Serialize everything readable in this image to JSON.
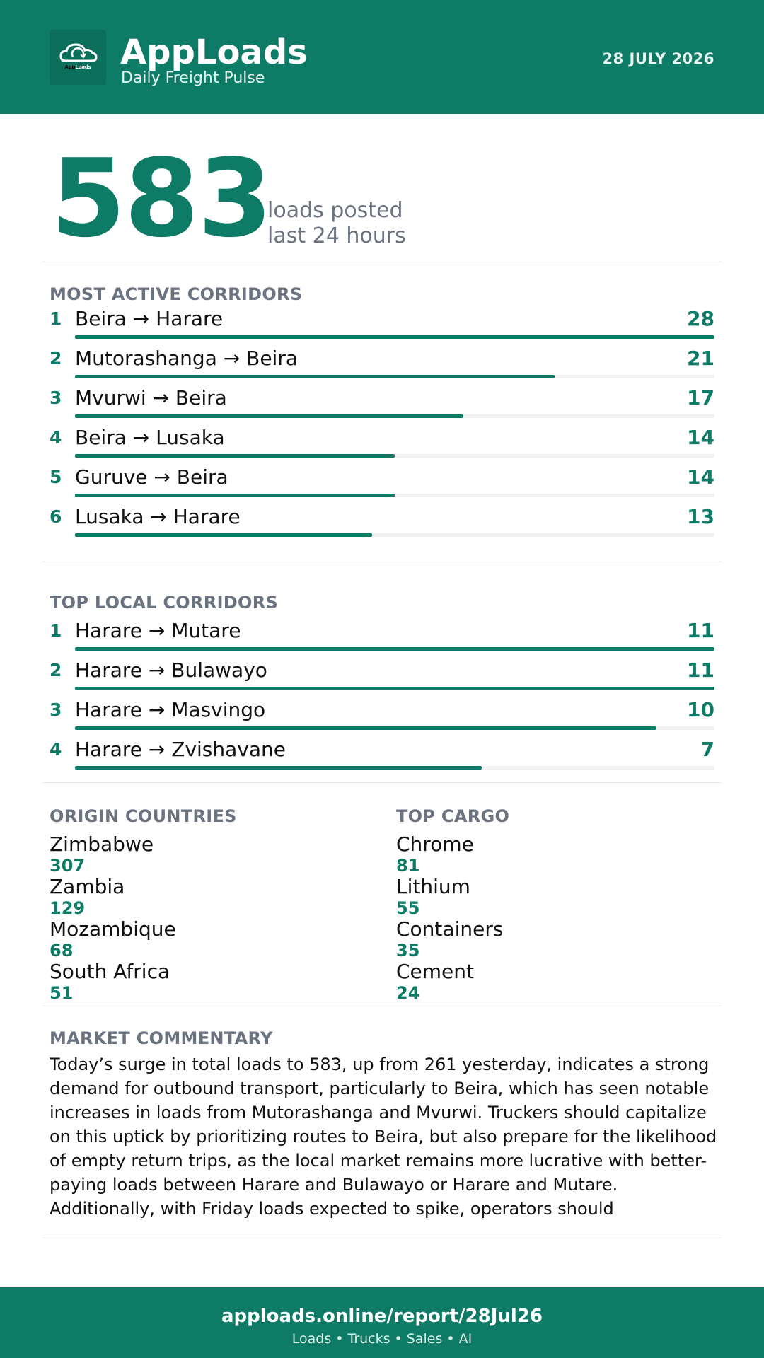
{
  "header": {
    "brand": "AppLoads",
    "tagline": "Daily Freight Pulse",
    "date": "28 JULY 2026",
    "logo": {
      "text_app": "App",
      "text_loads": "Loads",
      "icon": "cloud-refresh-icon"
    },
    "colors": {
      "brand": "#0d7b66"
    }
  },
  "hero": {
    "value": "583",
    "label_line1": "loads posted",
    "label_line2": "last 24 hours"
  },
  "most_active": {
    "title": "MOST ACTIVE CORRIDORS",
    "max": 28,
    "items": [
      {
        "rank": "1",
        "route": "Beira → Harare",
        "count": 28
      },
      {
        "rank": "2",
        "route": "Mutorashanga → Beira",
        "count": 21
      },
      {
        "rank": "3",
        "route": "Mvurwi → Beira",
        "count": 17
      },
      {
        "rank": "4",
        "route": "Beira → Lusaka",
        "count": 14
      },
      {
        "rank": "5",
        "route": "Guruve → Beira",
        "count": 14
      },
      {
        "rank": "6",
        "route": "Lusaka → Harare",
        "count": 13
      }
    ]
  },
  "top_local": {
    "title": "TOP LOCAL CORRIDORS",
    "max": 11,
    "items": [
      {
        "rank": "1",
        "route": "Harare → Mutare",
        "count": 11
      },
      {
        "rank": "2",
        "route": "Harare → Bulawayo",
        "count": 11
      },
      {
        "rank": "3",
        "route": "Harare → Masvingo",
        "count": 10
      },
      {
        "rank": "4",
        "route": "Harare → Zvishavane",
        "count": 7
      }
    ]
  },
  "origin_countries": {
    "title": "ORIGIN COUNTRIES",
    "items": [
      {
        "name": "Zimbabwe",
        "value": "307"
      },
      {
        "name": "Zambia",
        "value": "129"
      },
      {
        "name": "Mozambique",
        "value": "68"
      },
      {
        "name": "South Africa",
        "value": "51"
      }
    ]
  },
  "top_cargo": {
    "title": "TOP CARGO",
    "items": [
      {
        "name": "Chrome",
        "value": "81"
      },
      {
        "name": "Lithium",
        "value": "55"
      },
      {
        "name": "Containers",
        "value": "35"
      },
      {
        "name": "Cement",
        "value": "24"
      }
    ]
  },
  "commentary": {
    "title": "MARKET COMMENTARY",
    "text": "Today’s surge in total loads to 583, up from 261 yesterday, indicates a strong demand for outbound transport, particularly to Beira, which has seen notable increases in loads from Mutorashanga and Mvurwi. Truckers should capitalize on this uptick by prioritizing routes to Beira, but also prepare for the likelihood of empty return trips, as the local market remains more lucrative with better-paying loads between Harare and Bulawayo or Harare and Mutare. Additionally, with Friday loads expected to spike, operators should"
  },
  "footer": {
    "url": "apploads.online/report/28Jul26",
    "tagline": "Loads • Trucks • Sales • AI"
  }
}
